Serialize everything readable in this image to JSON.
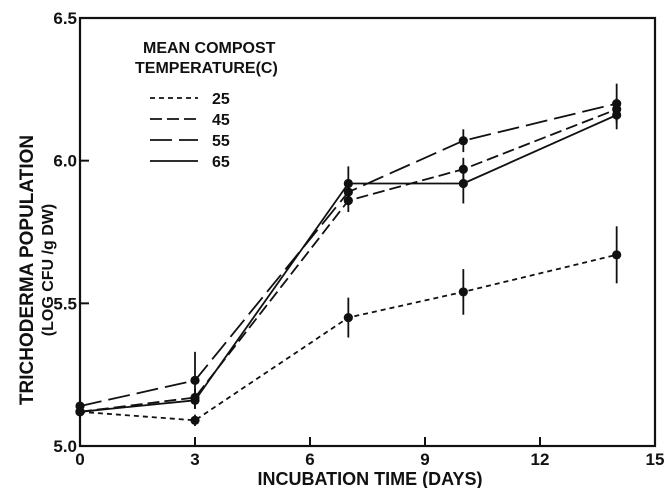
{
  "chart_data": {
    "type": "line",
    "xlabel": "INCUBATION TIME (DAYS)",
    "ylabel_line1": "TRICHODERMA POPULATION",
    "ylabel_line2": "(LOG CFU /g DW)",
    "xlim": [
      0,
      15
    ],
    "ylim": [
      5.0,
      6.5
    ],
    "x_ticks": [
      0,
      3,
      6,
      9,
      12,
      15
    ],
    "y_ticks": [
      5.0,
      5.5,
      6.0,
      6.5
    ],
    "x_tick_labels": [
      "0",
      "3",
      "6",
      "9",
      "12",
      "15"
    ],
    "y_tick_labels": [
      "5.0",
      "5.5",
      "6.0",
      "6.5"
    ],
    "grid": false,
    "legend": {
      "title_line1": "MEAN COMPOST",
      "title_line2": "TEMPERATURE(C)",
      "placement": "top-left"
    },
    "x": [
      0,
      3,
      7,
      10,
      14
    ],
    "series": [
      {
        "name": "25",
        "dash": "short-dash",
        "values": [
          5.12,
          5.09,
          5.45,
          5.54,
          5.67
        ],
        "err": [
          0.02,
          0.02,
          0.07,
          0.08,
          0.1
        ]
      },
      {
        "name": "45",
        "dash": "medium-dash",
        "values": [
          5.12,
          5.17,
          5.86,
          5.97,
          6.18
        ],
        "err": [
          0.02,
          0.03,
          0.04,
          0.04,
          0.04
        ]
      },
      {
        "name": "55",
        "dash": "long-dash",
        "values": [
          5.14,
          5.23,
          5.89,
          6.07,
          6.2
        ],
        "err": [
          0.02,
          0.1,
          0.04,
          0.04,
          0.07
        ]
      },
      {
        "name": "65",
        "dash": "solid",
        "values": [
          5.12,
          5.16,
          5.92,
          5.92,
          6.16
        ],
        "err": [
          0.02,
          0.03,
          0.06,
          0.07,
          0.05
        ]
      }
    ]
  }
}
